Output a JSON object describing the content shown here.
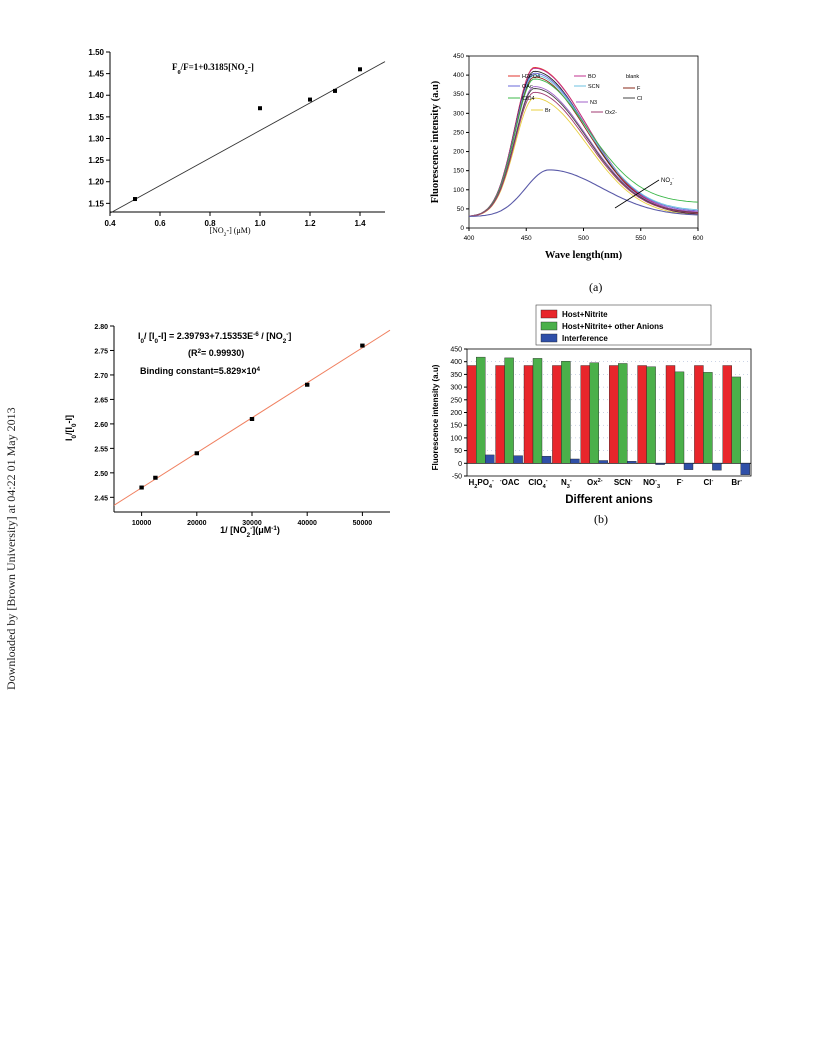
{
  "side_note": "Downloaded by [Brown University] at 04:22 01 May 2013",
  "captions": {
    "a": "(a)",
    "b": "(b)"
  },
  "chart_data": [
    {
      "id": "stern-volmer",
      "type": "scatter",
      "title": "F0/F=1+0.3185[NO2-]",
      "xlabel": "[NO2-] (μM)",
      "ylabel": "F0/F",
      "xlim": [
        0.4,
        1.5
      ],
      "ylim": [
        1.13,
        1.5
      ],
      "xticks": [
        "0.4",
        "0.6",
        "0.8",
        "1.0",
        "1.2",
        "1.4"
      ],
      "yticks": [
        "1.15",
        "1.20",
        "1.25",
        "1.30",
        "1.35",
        "1.40",
        "1.45",
        "1.50"
      ],
      "points": [
        [
          0.5,
          1.16
        ],
        [
          1.0,
          1.37
        ],
        [
          1.2,
          1.39
        ],
        [
          1.3,
          1.41
        ],
        [
          1.4,
          1.46
        ]
      ],
      "fit": {
        "intercept": 1.0,
        "slope": 0.3185
      }
    },
    {
      "id": "spectra",
      "type": "line",
      "xlabel": "Wave length(nm)",
      "ylabel": "Fluorescence intensity (a.u)",
      "xlim": [
        400,
        600
      ],
      "ylim": [
        0,
        450
      ],
      "xticks": [
        "400",
        "450",
        "500",
        "550",
        "600"
      ],
      "yticks": [
        "0",
        "50",
        "100",
        "150",
        "200",
        "250",
        "300",
        "350",
        "400",
        "450"
      ],
      "annotation": "NO2-",
      "legend": [
        "H2PO4",
        "BO",
        "blank",
        "OAc",
        "SCN",
        "F",
        "ClO4",
        "N3",
        "Cl",
        "Br",
        "Ox2-"
      ],
      "series": [
        {
          "color": "#e0362f",
          "peak": 420,
          "end": 35
        },
        {
          "color": "#c0308f",
          "peak": 418,
          "end": 38
        },
        {
          "color": "#222222",
          "peak": 410,
          "end": 33
        },
        {
          "color": "#6a6ad8",
          "peak": 405,
          "end": 42
        },
        {
          "color": "#6ec2e0",
          "peak": 400,
          "end": 45
        },
        {
          "color": "#8a2a1a",
          "peak": 395,
          "end": 38
        },
        {
          "color": "#3cb84a",
          "peak": 390,
          "end": 65
        },
        {
          "color": "#a060c8",
          "peak": 370,
          "end": 40
        },
        {
          "color": "#444444",
          "peak": 365,
          "end": 37
        },
        {
          "color": "#e8d040",
          "peak": 340,
          "end": 32
        },
        {
          "color": "#a03a70",
          "peak": 355,
          "end": 36
        },
        {
          "color": "#5a5aa8",
          "peak": 152,
          "end": 32,
          "peak_x": 470
        }
      ]
    },
    {
      "id": "benesi-hildebrand",
      "type": "scatter",
      "equation": "I0/ [I0-I] = 2.39793+7.15353E-6 / [NO2-]",
      "r2": "(R2 = 0.99930)",
      "binding": "Binding constant=5.829×104",
      "xlabel": "1/ [NO2-](μM-1)",
      "ylabel": "I0/[I0-I]",
      "xlim": [
        5000,
        55000
      ],
      "ylim": [
        2.42,
        2.8
      ],
      "xticks": [
        "10000",
        "20000",
        "30000",
        "40000",
        "50000"
      ],
      "yticks": [
        "2.45",
        "2.50",
        "2.55",
        "2.60",
        "2.65",
        "2.70",
        "2.75",
        "2.80"
      ],
      "points": [
        [
          10000,
          2.47
        ],
        [
          12500,
          2.49
        ],
        [
          20000,
          2.54
        ],
        [
          30000,
          2.61
        ],
        [
          40000,
          2.68
        ],
        [
          50000,
          2.76
        ]
      ],
      "fit": {
        "intercept": 2.39793,
        "slope": 7.15353e-06
      }
    },
    {
      "id": "interference",
      "type": "bar",
      "xlabel": "Different anions",
      "ylabel": "Fluorescence intensity (a.u)",
      "ylim": [
        -50,
        450
      ],
      "yticks": [
        "-50",
        "0",
        "50",
        "100",
        "150",
        "200",
        "250",
        "300",
        "350",
        "400",
        "450"
      ],
      "categories": [
        "H2PO4-",
        "OAC",
        "ClO4-",
        "N3-",
        "Ox2-",
        "SCN-",
        "NO3-",
        "F-",
        "Cl-",
        "Br-"
      ],
      "series": [
        {
          "name": "Host+Nitrite",
          "color": "#e8262b",
          "values": [
            385,
            385,
            385,
            385,
            385,
            385,
            385,
            385,
            385,
            385
          ]
        },
        {
          "name": "Host+Nitrite+ other Anions",
          "color": "#4bb04a",
          "values": [
            418,
            415,
            413,
            402,
            396,
            393,
            380,
            360,
            358,
            340
          ]
        },
        {
          "name": "Interference",
          "color": "#2f4fa8",
          "values": [
            33,
            30,
            28,
            17,
            11,
            8,
            -5,
            -25,
            -27,
            -45
          ]
        }
      ]
    }
  ]
}
